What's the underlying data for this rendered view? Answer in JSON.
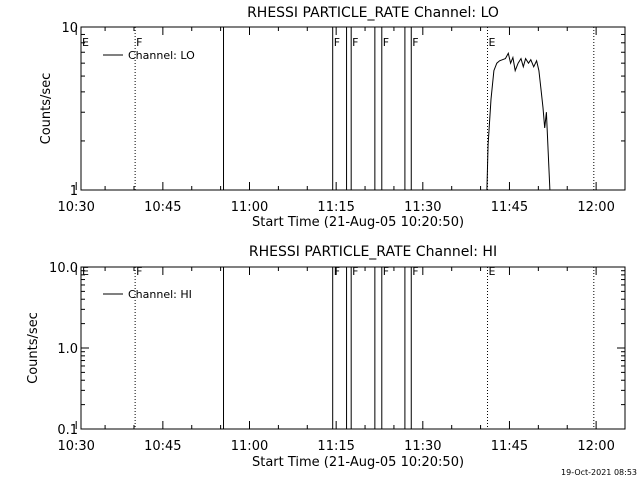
{
  "timestamp": "19-Oct-2021 08:53",
  "chart_data": [
    {
      "type": "line",
      "title": "RHESSI PARTICLE_RATE Channel: LO",
      "xlabel": "Start Time (21-Aug-05 10:20:50)",
      "ylabel": "Counts/sec",
      "yscale": "log",
      "ylim": [
        1,
        10
      ],
      "ytick_values": [
        1,
        10
      ],
      "ytick_labels": [
        "1",
        "10"
      ],
      "xlim_minutes": [
        630.83,
        725.0
      ],
      "xtick_values": [
        630,
        645,
        660,
        675,
        690,
        705,
        720
      ],
      "xtick_labels": [
        "10:30",
        "10:45",
        "11:00",
        "11:15",
        "11:30",
        "11:45",
        "12:00"
      ],
      "legend": "Channel: LO",
      "legend_placement": "top-left",
      "flags": [
        {
          "label": "E",
          "x": 621.0,
          "style": "none"
        },
        {
          "label": "F",
          "x": 640.2,
          "style": "dotted"
        },
        {
          "label": "",
          "x": 655.5,
          "style": "solid"
        },
        {
          "label": "F",
          "x": 674.4,
          "style": "solid"
        },
        {
          "label": "",
          "x": 676.8,
          "style": "solid"
        },
        {
          "label": "F",
          "x": 677.6,
          "style": "solid"
        },
        {
          "label": "",
          "x": 681.7,
          "style": "solid"
        },
        {
          "label": "F",
          "x": 682.9,
          "style": "solid"
        },
        {
          "label": "",
          "x": 686.9,
          "style": "solid"
        },
        {
          "label": "F",
          "x": 688.0,
          "style": "solid"
        },
        {
          "label": "E",
          "x": 701.2,
          "style": "dotted"
        },
        {
          "label": "",
          "x": 719.6,
          "style": "dotted"
        }
      ],
      "series": [
        {
          "name": "Channel: LO",
          "x": [
            701.1,
            701.3,
            701.8,
            702.3,
            702.8,
            703.3,
            703.8,
            704.3,
            704.8,
            705.2,
            705.6,
            706.0,
            706.5,
            707.0,
            707.4,
            707.8,
            708.3,
            708.7,
            709.2,
            709.7,
            710.1,
            710.4,
            710.8,
            711.1,
            711.4,
            711.7,
            712.0
          ],
          "y": [
            1.0,
            1.9,
            3.6,
            5.4,
            6.0,
            6.2,
            6.3,
            6.4,
            6.9,
            6.0,
            6.5,
            5.4,
            6.0,
            6.4,
            5.7,
            6.4,
            6.0,
            6.3,
            5.7,
            6.2,
            5.4,
            4.3,
            3.2,
            2.4,
            3.0,
            1.7,
            1.0
          ]
        }
      ]
    },
    {
      "type": "line",
      "title": "RHESSI PARTICLE_RATE Channel: HI",
      "xlabel": "Start Time (21-Aug-05 10:20:50)",
      "ylabel": "Counts/sec",
      "yscale": "log",
      "ylim": [
        0.1,
        10
      ],
      "ytick_values": [
        0.1,
        1,
        10
      ],
      "ytick_labels": [
        "0.1",
        "1.0",
        "10.0"
      ],
      "xlim_minutes": [
        630.83,
        725.0
      ],
      "xtick_values": [
        630,
        645,
        660,
        675,
        690,
        705,
        720
      ],
      "xtick_labels": [
        "10:30",
        "10:45",
        "11:00",
        "11:15",
        "11:30",
        "11:45",
        "12:00"
      ],
      "legend": "Channel: HI",
      "legend_placement": "top-left",
      "flags": [
        {
          "label": "E",
          "x": 621.0,
          "style": "none"
        },
        {
          "label": "F",
          "x": 640.2,
          "style": "dotted"
        },
        {
          "label": "",
          "x": 655.5,
          "style": "solid"
        },
        {
          "label": "F",
          "x": 674.4,
          "style": "solid"
        },
        {
          "label": "",
          "x": 676.8,
          "style": "solid"
        },
        {
          "label": "F",
          "x": 677.6,
          "style": "solid"
        },
        {
          "label": "",
          "x": 681.7,
          "style": "solid"
        },
        {
          "label": "F",
          "x": 682.9,
          "style": "solid"
        },
        {
          "label": "",
          "x": 686.9,
          "style": "solid"
        },
        {
          "label": "F",
          "x": 688.0,
          "style": "solid"
        },
        {
          "label": "E",
          "x": 701.2,
          "style": "dotted"
        },
        {
          "label": "",
          "x": 719.6,
          "style": "dotted"
        }
      ],
      "series": [
        {
          "name": "Channel: HI",
          "x": [],
          "y": []
        }
      ]
    }
  ]
}
